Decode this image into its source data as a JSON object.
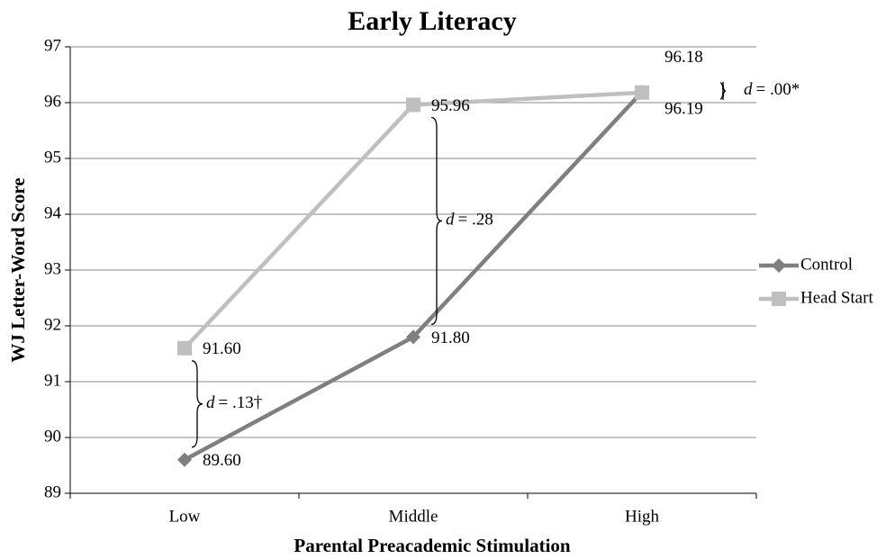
{
  "chart_data": {
    "type": "line",
    "title": "Early Literacy",
    "x_label": "Parental Preacademic Stimulation",
    "y_label": "WJ Letter-Word Score",
    "categories": [
      "Low",
      "Middle",
      "High"
    ],
    "series": [
      {
        "name": "Control",
        "color": "#7f7f7f",
        "marker": "diamond",
        "values": [
          89.6,
          91.8,
          96.19
        ],
        "value_labels": [
          "89.60",
          "91.80",
          "96.19"
        ]
      },
      {
        "name": "Head Start",
        "color": "#bfbfbf",
        "marker": "square",
        "values": [
          91.6,
          95.96,
          96.18
        ],
        "value_labels": [
          "91.60",
          "95.96",
          "96.18"
        ]
      }
    ],
    "ylim": [
      89,
      97
    ],
    "yticks": [
      89,
      90,
      91,
      92,
      93,
      94,
      95,
      96,
      97
    ],
    "grid": true,
    "legend": "right",
    "annotations": [
      {
        "symbol": "d",
        "text": "= .13†"
      },
      {
        "symbol": "d",
        "text": "= .28"
      },
      {
        "symbol": "d",
        "text": "= .00*"
      }
    ]
  }
}
